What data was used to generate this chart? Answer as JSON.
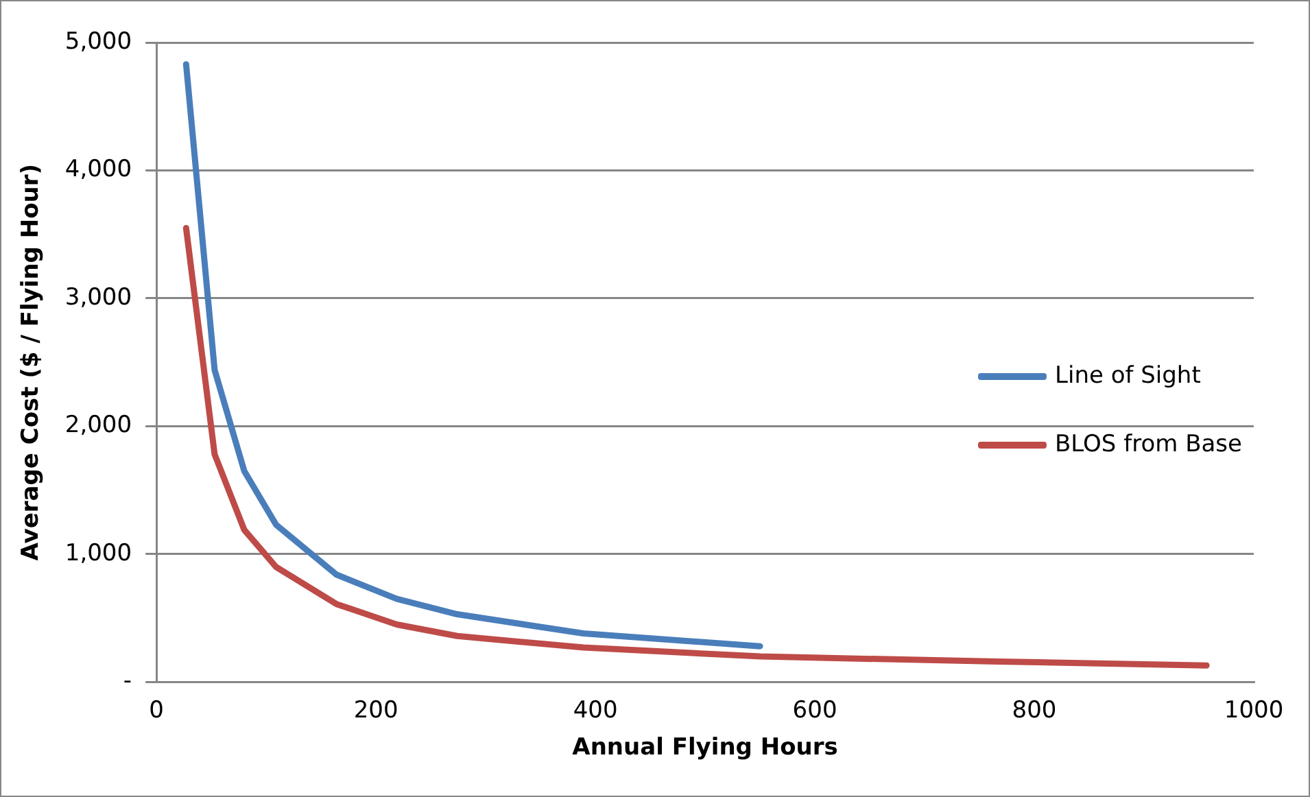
{
  "chart_data": {
    "type": "line",
    "xlabel": "Annual Flying Hours",
    "ylabel": "Average Cost ($ / Flying Hour)",
    "xlim": [
      0,
      1000
    ],
    "xticks": [
      0,
      200,
      400,
      600,
      800,
      1000
    ],
    "ylim": [
      0,
      5000
    ],
    "yticks": [
      {
        "value": 0,
        "label": "-"
      },
      {
        "value": 1000,
        "label": "1,000"
      },
      {
        "value": 2000,
        "label": "2,000"
      },
      {
        "value": 3000,
        "label": "3,000"
      },
      {
        "value": 4000,
        "label": "4,000"
      },
      {
        "value": 5000,
        "label": "5,000"
      }
    ],
    "grid": "y",
    "legend": "right",
    "marker": "none",
    "line_style": "solid",
    "series": [
      {
        "name": "Line of Sight",
        "color": "#4a7ebb",
        "x": [
          27,
          53,
          80,
          109,
          164,
          219,
          274,
          389,
          550
        ],
        "values": [
          4830,
          2440,
          1650,
          1230,
          840,
          650,
          530,
          380,
          280
        ]
      },
      {
        "name": "BLOS from Base",
        "color": "#be4b48",
        "x": [
          27,
          53,
          80,
          109,
          164,
          219,
          274,
          389,
          550,
          767,
          957
        ],
        "values": [
          3550,
          1780,
          1190,
          900,
          610,
          450,
          360,
          270,
          200,
          160,
          130
        ]
      }
    ]
  }
}
